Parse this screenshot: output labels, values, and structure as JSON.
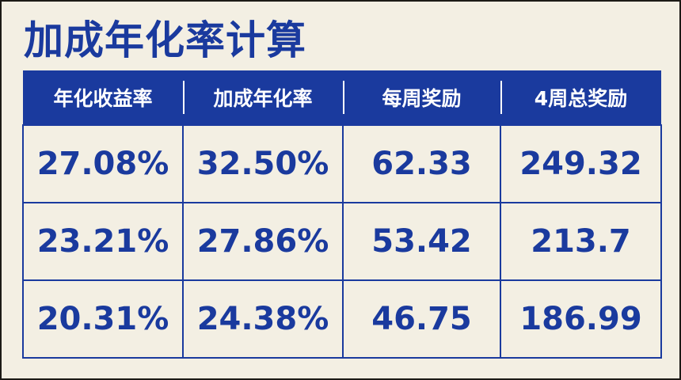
{
  "title": "加成年化率计算",
  "colors": {
    "accent": "#1a3a9e",
    "background": "#f3efe3"
  },
  "table": {
    "headers": [
      "年化收益率",
      "加成年化率",
      "每周奖励",
      "4周总奖励"
    ],
    "rows": [
      [
        "27.08%",
        "32.50%",
        "62.33",
        "249.32"
      ],
      [
        "23.21%",
        "27.86%",
        "53.42",
        "213.7"
      ],
      [
        "20.31%",
        "24.38%",
        "46.75",
        "186.99"
      ]
    ]
  }
}
